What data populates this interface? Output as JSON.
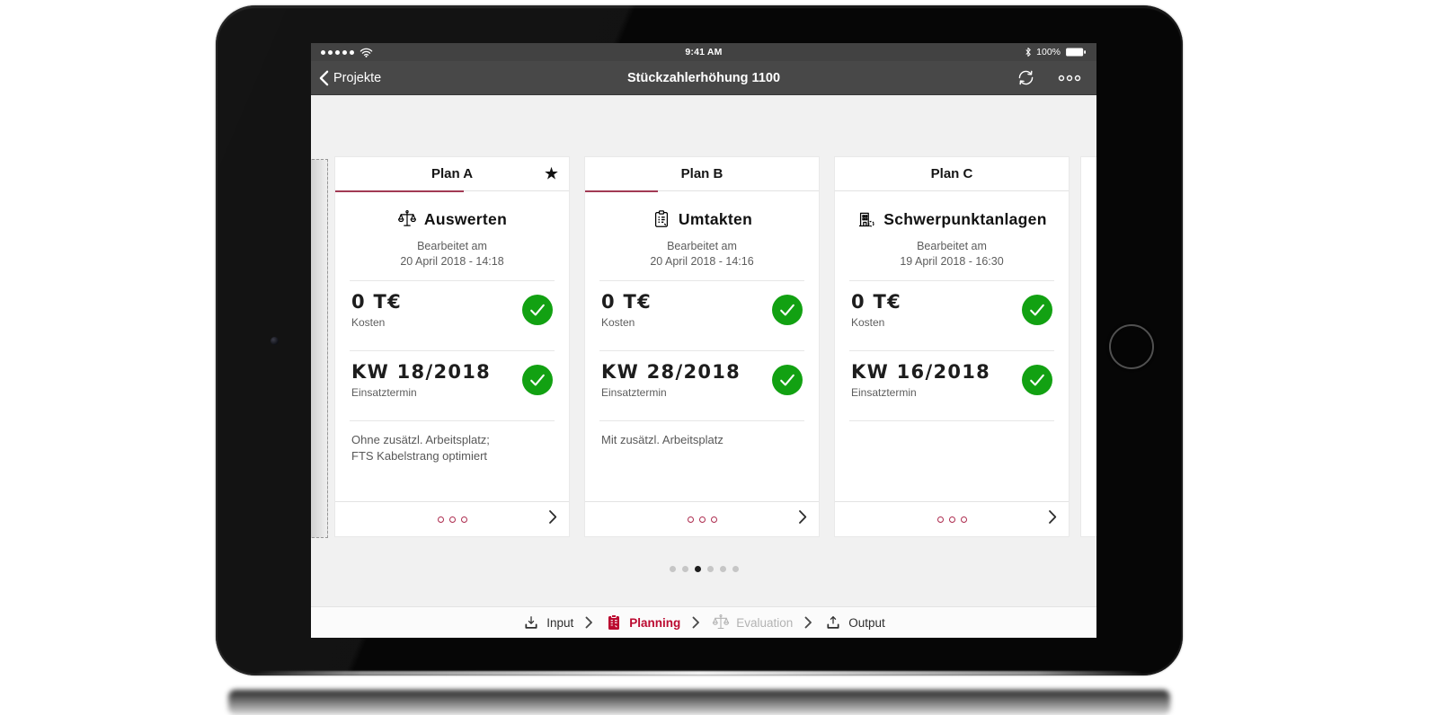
{
  "status_bar": {
    "signal_dots": 5,
    "time": "9:41 AM",
    "battery_percent": "100%"
  },
  "nav_bar": {
    "back_label": "Projekte",
    "title": "Stückzahlerhöhung 1100",
    "actions": [
      {
        "icon": "sync-icon"
      },
      {
        "icon": "more-icon"
      }
    ]
  },
  "board": {
    "plans": [
      {
        "name": "Plan A",
        "starred": true,
        "progress_pct": 55,
        "icon": "scale-icon",
        "title": "Auswerten",
        "edited_label": "Bearbeitet am",
        "edited_date": "20 April 2018 - 14:18",
        "metrics": [
          {
            "value": "0 T€",
            "label": "Kosten",
            "status": "ok"
          },
          {
            "value": "KW 18/2018",
            "label": "Einsatztermin",
            "status": "ok"
          }
        ],
        "note_lines": [
          "Ohne zusätzl. Arbeitsplatz;",
          "FTS Kabelstrang optimiert"
        ]
      },
      {
        "name": "Plan B",
        "starred": false,
        "progress_pct": 31,
        "icon": "clipboard-icon",
        "title": "Umtakten",
        "edited_label": "Bearbeitet am",
        "edited_date": "20 April 2018 - 14:16",
        "metrics": [
          {
            "value": "0 T€",
            "label": "Kosten",
            "status": "ok"
          },
          {
            "value": "KW 28/2018",
            "label": "Einsatztermin",
            "status": "ok"
          }
        ],
        "note_lines": [
          "Mit zusätzl. Arbeitsplatz"
        ]
      },
      {
        "name": "Plan C",
        "starred": false,
        "progress_pct": 0,
        "icon": "factory-icon",
        "title": "Schwerpunktanlagen",
        "edited_label": "Bearbeitet am",
        "edited_date": "19 April 2018 - 16:30",
        "metrics": [
          {
            "value": "0 T€",
            "label": "Kosten",
            "status": "ok"
          },
          {
            "value": "KW 16/2018",
            "label": "Einsatztermin",
            "status": "ok"
          }
        ],
        "note_lines": []
      }
    ],
    "pager": {
      "count": 6,
      "active_index": 2
    }
  },
  "workflow": {
    "items": [
      {
        "label": "Input",
        "icon": "download-icon",
        "state": "normal"
      },
      {
        "label": "Planning",
        "icon": "clipboard-filled-icon",
        "state": "active"
      },
      {
        "label": "Evaluation",
        "icon": "scale-icon",
        "state": "disabled"
      },
      {
        "label": "Output",
        "icon": "upload-icon",
        "state": "normal"
      }
    ]
  },
  "colors": {
    "accent_red": "#bb0a30",
    "progress_red": "#a23a54",
    "dot_red": "#ad2b4e",
    "success_green": "#12a112",
    "disabled_gray": "#b3b3b3",
    "nav_bg": "#484848",
    "content_bg": "#f1f1f1"
  }
}
